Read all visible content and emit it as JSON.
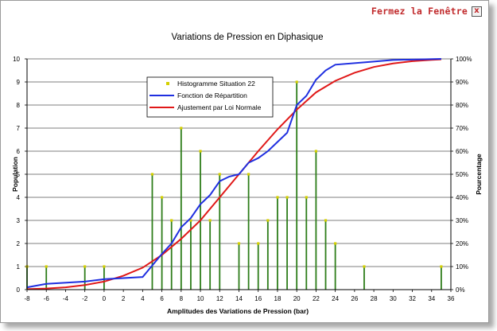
{
  "window": {
    "close_label": "Fermez la Fenêtre",
    "close_glyph": "x"
  },
  "chart_data": {
    "type": "bar+line",
    "title": "Variations de Pression en Diphasique",
    "xlabel": "Amplitudes des Variations de Pression (bar)",
    "ylabel_left": "Population",
    "ylabel_right": "Pourcentage",
    "xlim": [
      -8,
      36
    ],
    "ylim_left": [
      0,
      10
    ],
    "ylim_right": [
      0,
      100
    ],
    "x_ticks": [
      -8,
      -6,
      -4,
      -2,
      0,
      2,
      4,
      6,
      8,
      10,
      12,
      14,
      16,
      18,
      20,
      22,
      24,
      26,
      28,
      30,
      32,
      34,
      36
    ],
    "y_ticks_left": [
      0,
      1,
      2,
      3,
      4,
      5,
      6,
      7,
      8,
      9,
      10
    ],
    "y_ticks_right": [
      "0%",
      "10%",
      "20%",
      "30%",
      "40%",
      "50%",
      "60%",
      "70%",
      "80%",
      "90%",
      "100%"
    ],
    "grid": "horizontal",
    "legend_position": "upper-left inside plot",
    "series": [
      {
        "name": "Histogramme Situation 22",
        "kind": "stem",
        "color": "#2e7d1a",
        "marker_color": "#d4d000",
        "points": [
          [
            -8,
            1
          ],
          [
            -6,
            1
          ],
          [
            -2,
            1
          ],
          [
            0,
            1
          ],
          [
            5,
            5
          ],
          [
            6,
            4
          ],
          [
            7,
            3
          ],
          [
            8,
            7
          ],
          [
            9,
            3
          ],
          [
            10,
            6
          ],
          [
            11,
            3
          ],
          [
            12,
            5
          ],
          [
            14,
            2
          ],
          [
            15,
            5
          ],
          [
            16,
            2
          ],
          [
            17,
            3
          ],
          [
            18,
            4
          ],
          [
            19,
            4
          ],
          [
            20,
            9
          ],
          [
            21,
            4
          ],
          [
            22,
            6
          ],
          [
            23,
            3
          ],
          [
            24,
            2
          ],
          [
            27,
            1
          ],
          [
            35,
            1
          ]
        ]
      },
      {
        "name": "Fonction de Répartition",
        "kind": "line",
        "color": "#1f2fe0",
        "points": [
          [
            -8,
            1
          ],
          [
            -6,
            2.5
          ],
          [
            -2,
            3.5
          ],
          [
            0,
            4.5
          ],
          [
            4,
            5.5
          ],
          [
            5,
            10.5
          ],
          [
            6,
            15.5
          ],
          [
            7,
            20
          ],
          [
            8,
            27
          ],
          [
            9,
            31
          ],
          [
            10,
            37
          ],
          [
            11,
            41
          ],
          [
            12,
            47
          ],
          [
            13,
            49
          ],
          [
            14,
            50
          ],
          [
            15,
            55
          ],
          [
            16,
            57
          ],
          [
            17,
            60
          ],
          [
            18,
            64
          ],
          [
            19,
            68
          ],
          [
            20,
            80
          ],
          [
            21,
            84
          ],
          [
            22,
            91
          ],
          [
            23,
            95
          ],
          [
            24,
            97.5
          ],
          [
            27,
            98.5
          ],
          [
            30,
            99.5
          ],
          [
            35,
            100
          ]
        ]
      },
      {
        "name": "Ajustement par Loi Normale",
        "kind": "line",
        "color": "#e01818",
        "points": [
          [
            -8,
            0.2
          ],
          [
            -6,
            0.5
          ],
          [
            -4,
            1
          ],
          [
            -2,
            2
          ],
          [
            0,
            3.5
          ],
          [
            2,
            6
          ],
          [
            4,
            9.5
          ],
          [
            6,
            15
          ],
          [
            8,
            22
          ],
          [
            10,
            30
          ],
          [
            12,
            40
          ],
          [
            14,
            50
          ],
          [
            16,
            60
          ],
          [
            18,
            69.5
          ],
          [
            20,
            78
          ],
          [
            22,
            85.5
          ],
          [
            24,
            90.5
          ],
          [
            26,
            94
          ],
          [
            28,
            96.5
          ],
          [
            30,
            98
          ],
          [
            32,
            99
          ],
          [
            34,
            99.6
          ],
          [
            35,
            99.8
          ]
        ]
      }
    ]
  }
}
